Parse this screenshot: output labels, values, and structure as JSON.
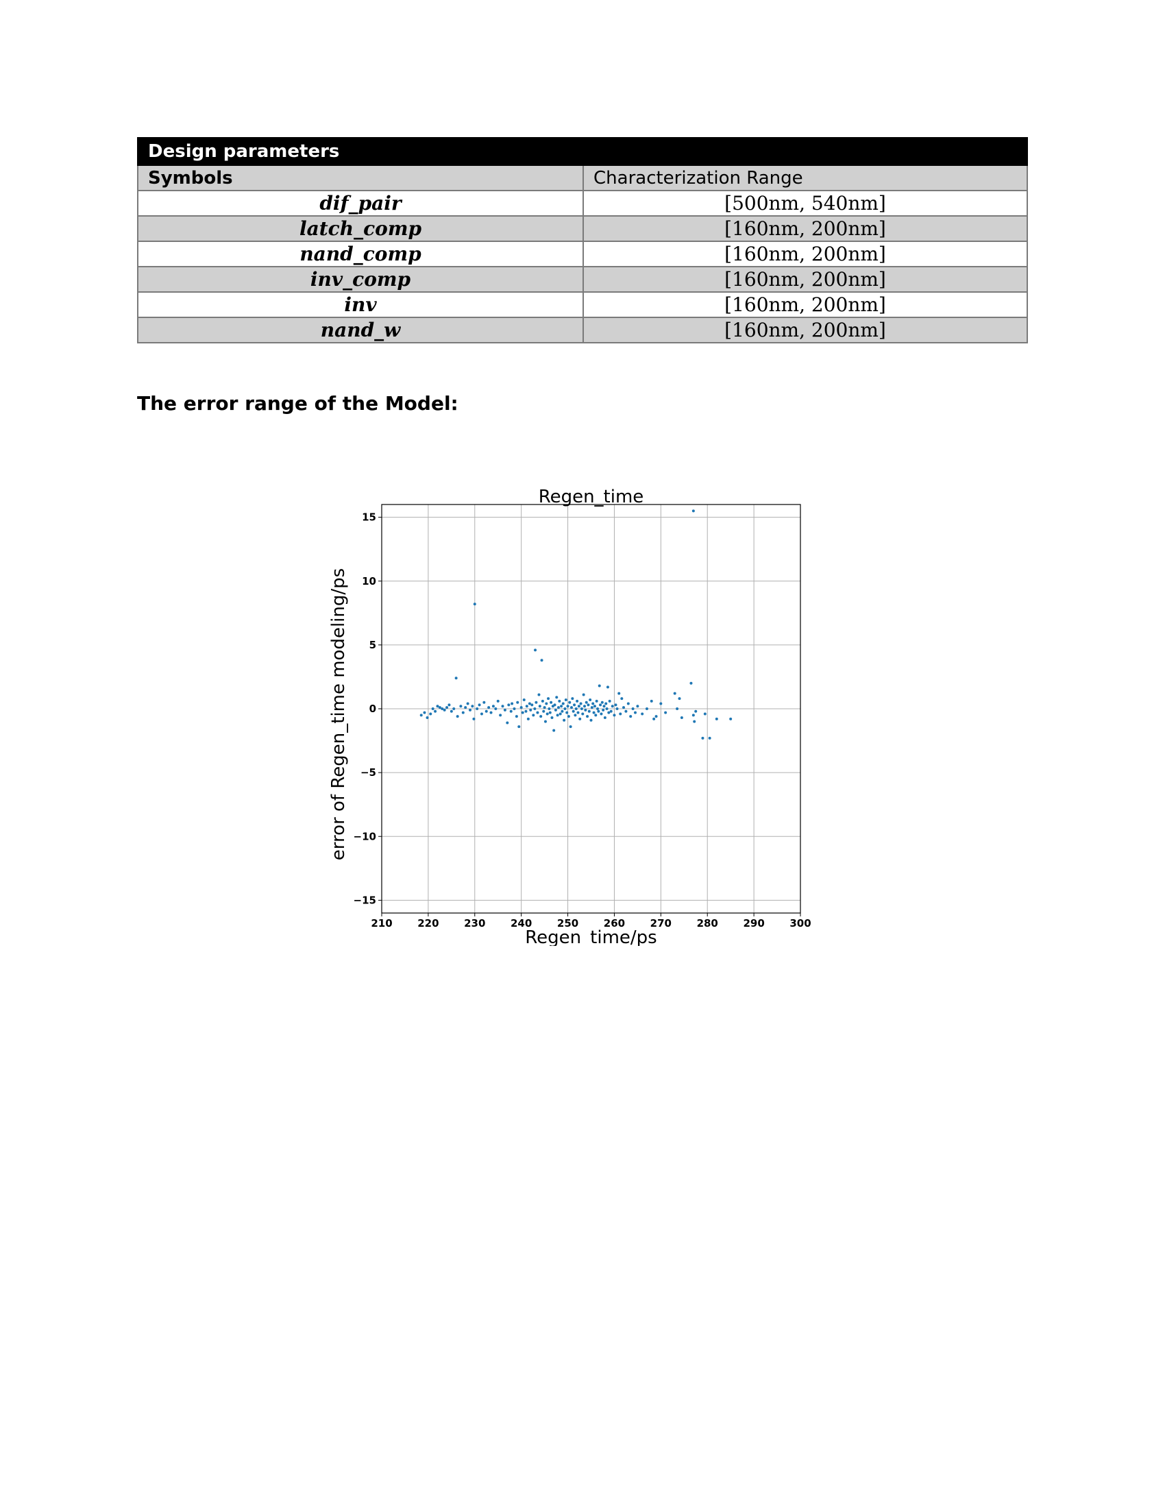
{
  "table": {
    "title": "Design parameters",
    "headers": [
      "Symbols",
      "Characterization Range"
    ],
    "rows": [
      {
        "symbol": "dif_pair",
        "range": "[500nm, 540nm]"
      },
      {
        "symbol": "latch_comp",
        "range": "[160nm, 200nm]"
      },
      {
        "symbol": "nand_comp",
        "range": "[160nm, 200nm]"
      },
      {
        "symbol": "inv_comp",
        "range": "[160nm, 200nm]"
      },
      {
        "symbol": "inv",
        "range": "[160nm, 200nm]"
      },
      {
        "symbol": "nand_w",
        "range": "[160nm, 200nm]"
      }
    ]
  },
  "section_heading": "The error range of the Model:",
  "chart_data": {
    "type": "scatter",
    "title": "Regen_time",
    "xlabel": "Regen_time/ps",
    "ylabel": "error of Regen_time modeling/ps",
    "xlim": [
      210,
      300
    ],
    "ylim": [
      -16,
      16
    ],
    "xticks": [
      210,
      220,
      230,
      240,
      250,
      260,
      270,
      280,
      290,
      300
    ],
    "yticks": [
      -15,
      -10,
      -5,
      0,
      5,
      10,
      15
    ],
    "grid": true,
    "marker_color": "#1f77b4",
    "points": [
      [
        218.5,
        -0.5
      ],
      [
        219.2,
        -0.3
      ],
      [
        219.8,
        -0.7
      ],
      [
        220.5,
        -0.4
      ],
      [
        221.0,
        0.0
      ],
      [
        221.5,
        -0.2
      ],
      [
        222.0,
        0.2
      ],
      [
        222.5,
        0.1
      ],
      [
        223.0,
        0.0
      ],
      [
        223.5,
        -0.1
      ],
      [
        224.0,
        0.1
      ],
      [
        224.5,
        0.3
      ],
      [
        225.0,
        -0.2
      ],
      [
        225.5,
        0.0
      ],
      [
        226.0,
        2.4
      ],
      [
        226.3,
        -0.6
      ],
      [
        227.0,
        0.2
      ],
      [
        227.5,
        -0.3
      ],
      [
        228.0,
        0.1
      ],
      [
        228.5,
        0.4
      ],
      [
        229.0,
        -0.1
      ],
      [
        229.5,
        0.2
      ],
      [
        229.8,
        -0.8
      ],
      [
        230.0,
        8.2
      ],
      [
        230.5,
        0.0
      ],
      [
        231.0,
        0.3
      ],
      [
        231.5,
        -0.4
      ],
      [
        232.0,
        0.5
      ],
      [
        232.5,
        -0.2
      ],
      [
        233.0,
        0.1
      ],
      [
        233.5,
        -0.3
      ],
      [
        234.0,
        0.2
      ],
      [
        234.5,
        0.0
      ],
      [
        235.0,
        0.6
      ],
      [
        235.5,
        -0.5
      ],
      [
        236.0,
        0.2
      ],
      [
        236.5,
        -0.1
      ],
      [
        237.0,
        -1.1
      ],
      [
        237.3,
        0.3
      ],
      [
        237.8,
        -0.2
      ],
      [
        238.0,
        0.4
      ],
      [
        238.5,
        0.0
      ],
      [
        239.0,
        -0.6
      ],
      [
        239.2,
        0.5
      ],
      [
        239.5,
        -1.4
      ],
      [
        240.0,
        0.1
      ],
      [
        240.3,
        -0.3
      ],
      [
        240.6,
        0.7
      ],
      [
        241.0,
        -0.2
      ],
      [
        241.2,
        0.2
      ],
      [
        241.5,
        -0.8
      ],
      [
        241.8,
        0.4
      ],
      [
        242.0,
        -0.1
      ],
      [
        242.3,
        0.3
      ],
      [
        242.6,
        -0.5
      ],
      [
        242.9,
        0.0
      ],
      [
        243.0,
        4.6
      ],
      [
        243.2,
        0.5
      ],
      [
        243.5,
        -0.3
      ],
      [
        243.8,
        1.1
      ],
      [
        244.0,
        0.2
      ],
      [
        244.2,
        -0.6
      ],
      [
        244.4,
        3.8
      ],
      [
        244.6,
        0.6
      ],
      [
        244.8,
        -0.2
      ],
      [
        245.0,
        0.1
      ],
      [
        245.2,
        -1.0
      ],
      [
        245.4,
        0.4
      ],
      [
        245.6,
        -0.4
      ],
      [
        245.8,
        0.8
      ],
      [
        246.0,
        0.0
      ],
      [
        246.2,
        -0.3
      ],
      [
        246.4,
        0.5
      ],
      [
        246.6,
        -0.7
      ],
      [
        246.8,
        0.2
      ],
      [
        247.0,
        -1.7
      ],
      [
        247.2,
        0.3
      ],
      [
        247.4,
        -0.1
      ],
      [
        247.6,
        0.9
      ],
      [
        247.8,
        -0.5
      ],
      [
        248.0,
        0.1
      ],
      [
        248.2,
        0.6
      ],
      [
        248.4,
        -0.4
      ],
      [
        248.6,
        0.2
      ],
      [
        248.8,
        -0.2
      ],
      [
        249.0,
        0.4
      ],
      [
        249.2,
        -0.9
      ],
      [
        249.4,
        0.0
      ],
      [
        249.6,
        0.7
      ],
      [
        249.8,
        -0.3
      ],
      [
        250.0,
        0.2
      ],
      [
        250.2,
        -0.6
      ],
      [
        250.4,
        0.5
      ],
      [
        250.6,
        -1.4
      ],
      [
        250.8,
        0.1
      ],
      [
        251.0,
        0.8
      ],
      [
        251.2,
        -0.2
      ],
      [
        251.4,
        0.3
      ],
      [
        251.6,
        -0.5
      ],
      [
        251.8,
        0.0
      ],
      [
        252.0,
        0.6
      ],
      [
        252.2,
        -0.3
      ],
      [
        252.4,
        0.2
      ],
      [
        252.6,
        -0.8
      ],
      [
        252.8,
        0.4
      ],
      [
        253.0,
        0.0
      ],
      [
        253.2,
        -0.4
      ],
      [
        253.4,
        1.1
      ],
      [
        253.6,
        0.2
      ],
      [
        253.8,
        -0.1
      ],
      [
        254.0,
        0.5
      ],
      [
        254.2,
        -0.6
      ],
      [
        254.4,
        0.3
      ],
      [
        254.6,
        -0.2
      ],
      [
        254.8,
        0.7
      ],
      [
        255.0,
        -0.9
      ],
      [
        255.2,
        0.1
      ],
      [
        255.4,
        0.4
      ],
      [
        255.6,
        -0.3
      ],
      [
        255.8,
        0.2
      ],
      [
        256.0,
        -0.5
      ],
      [
        256.2,
        0.6
      ],
      [
        256.4,
        0.0
      ],
      [
        256.6,
        -0.2
      ],
      [
        256.8,
        1.8
      ],
      [
        257.0,
        0.3
      ],
      [
        257.2,
        -0.4
      ],
      [
        257.4,
        0.5
      ],
      [
        257.6,
        -0.1
      ],
      [
        257.8,
        0.2
      ],
      [
        258.0,
        -0.7
      ],
      [
        258.2,
        0.4
      ],
      [
        258.4,
        0.0
      ],
      [
        258.6,
        1.7
      ],
      [
        258.8,
        -0.3
      ],
      [
        259.0,
        0.6
      ],
      [
        259.3,
        -0.2
      ],
      [
        259.6,
        0.2
      ],
      [
        260.0,
        -0.5
      ],
      [
        260.3,
        0.3
      ],
      [
        260.6,
        0.0
      ],
      [
        261.0,
        1.2
      ],
      [
        261.3,
        -0.4
      ],
      [
        261.6,
        0.8
      ],
      [
        262.0,
        0.1
      ],
      [
        262.5,
        -0.2
      ],
      [
        263.0,
        0.4
      ],
      [
        263.5,
        -0.6
      ],
      [
        264.0,
        0.0
      ],
      [
        264.5,
        -0.3
      ],
      [
        265.0,
        0.2
      ],
      [
        266.0,
        -0.4
      ],
      [
        267.0,
        0.0
      ],
      [
        268.0,
        0.6
      ],
      [
        268.5,
        -0.8
      ],
      [
        269.0,
        -0.6
      ],
      [
        270.0,
        0.4
      ],
      [
        271.0,
        -0.3
      ],
      [
        273.0,
        1.2
      ],
      [
        273.5,
        0.0
      ],
      [
        274.0,
        0.8
      ],
      [
        274.5,
        -0.7
      ],
      [
        276.5,
        2.0
      ],
      [
        277.0,
        -0.5
      ],
      [
        277.2,
        -1.0
      ],
      [
        277.5,
        -0.2
      ],
      [
        279.0,
        -2.3
      ],
      [
        279.5,
        -0.4
      ],
      [
        280.5,
        -2.3
      ],
      [
        277.0,
        15.5
      ],
      [
        282.0,
        -0.8
      ],
      [
        285.0,
        -0.8
      ]
    ]
  }
}
